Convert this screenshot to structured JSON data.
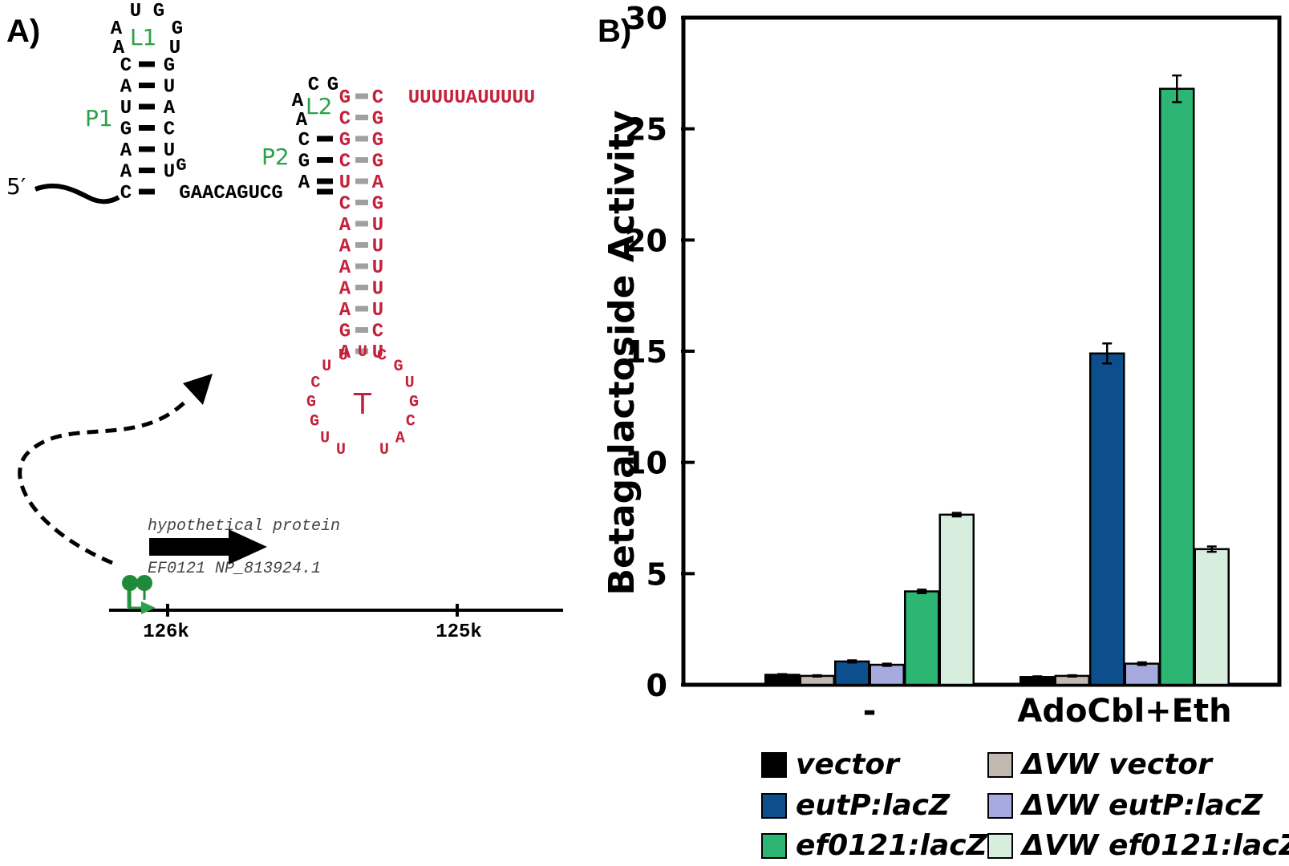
{
  "panel_a": {
    "label": "A)",
    "five_prime": "5′",
    "hairpin1": {
      "loop_top": [
        "U",
        "G"
      ],
      "loop_left": [
        "A",
        "A"
      ],
      "loop_right": [
        "G",
        "U"
      ],
      "loop_label": "L1",
      "stem_label": "P1",
      "left": [
        "C",
        "A",
        "U",
        "G",
        "A",
        "A",
        "C"
      ],
      "right": [
        "G",
        "U",
        "A",
        "C",
        "U",
        "U"
      ],
      "bulge": "G"
    },
    "linker": "GAACAGUCG",
    "hairpin2": {
      "loop_top": [
        "C",
        "G"
      ],
      "loop_left": [
        "A",
        "A"
      ],
      "loop_label": "L2",
      "stem_label": "P2",
      "left_black": [
        "C",
        "G",
        "A"
      ],
      "red_left": [
        "G",
        "C",
        "G",
        "C",
        "U",
        "C",
        "A",
        "A",
        "A",
        "A",
        "A",
        "G",
        "A"
      ],
      "red_right": [
        "C",
        "G",
        "G",
        "G",
        "A",
        "G",
        "U",
        "U",
        "U",
        "U",
        "U",
        "C",
        "U"
      ],
      "tail": "UUUUUAUUUUU"
    },
    "terminator_loop": {
      "label": "T",
      "letters": [
        "U",
        "U",
        "G",
        "G",
        "C",
        "U",
        "U",
        "U",
        "C",
        "G",
        "U",
        "G",
        "C",
        "A",
        "U"
      ]
    },
    "genome": {
      "gene_name": "hypothetical protein",
      "gene_id": "EF0121 NP_813924.1",
      "ticks": [
        "126k",
        "125k"
      ]
    },
    "colors": {
      "red": "#c4213b",
      "green": "#2ba14b",
      "green_dark": "#1f8a3a",
      "gray": "#a0a0a0"
    }
  },
  "panel_b": {
    "label": "B)"
  },
  "chart_data": {
    "type": "bar",
    "title": "",
    "xlabel": "",
    "ylabel": "Betagalactoside Activity",
    "ylim": [
      0,
      30
    ],
    "yticks": [
      0,
      5,
      10,
      15,
      20,
      25,
      30
    ],
    "categories": [
      "-",
      "AdoCbl+Eth"
    ],
    "series": [
      {
        "name": "vector",
        "color": "#000000",
        "values": [
          0.45,
          0.35
        ],
        "errors": [
          0.03,
          0.03
        ]
      },
      {
        "name": "ΔVW vector",
        "color": "#c2b9b0",
        "values": [
          0.4,
          0.4
        ],
        "errors": [
          0.03,
          0.03
        ]
      },
      {
        "name": "eutP:lacZ",
        "color": "#0d4e8c",
        "values": [
          1.05,
          14.9
        ],
        "errors": [
          0.05,
          0.45
        ]
      },
      {
        "name": "ΔVW eutP:lacZ",
        "color": "#a6aade",
        "values": [
          0.9,
          0.95
        ],
        "errors": [
          0.05,
          0.06
        ]
      },
      {
        "name": "ef0121:lacZ",
        "color": "#2cb573",
        "values": [
          4.2,
          26.8
        ],
        "errors": [
          0.08,
          0.6
        ]
      },
      {
        "name": "ΔVW ef0121:lacZ",
        "color": "#d7eedf",
        "values": [
          7.65,
          6.1
        ],
        "errors": [
          0.08,
          0.12
        ]
      }
    ],
    "legend_position": "bottom",
    "grid": false
  }
}
